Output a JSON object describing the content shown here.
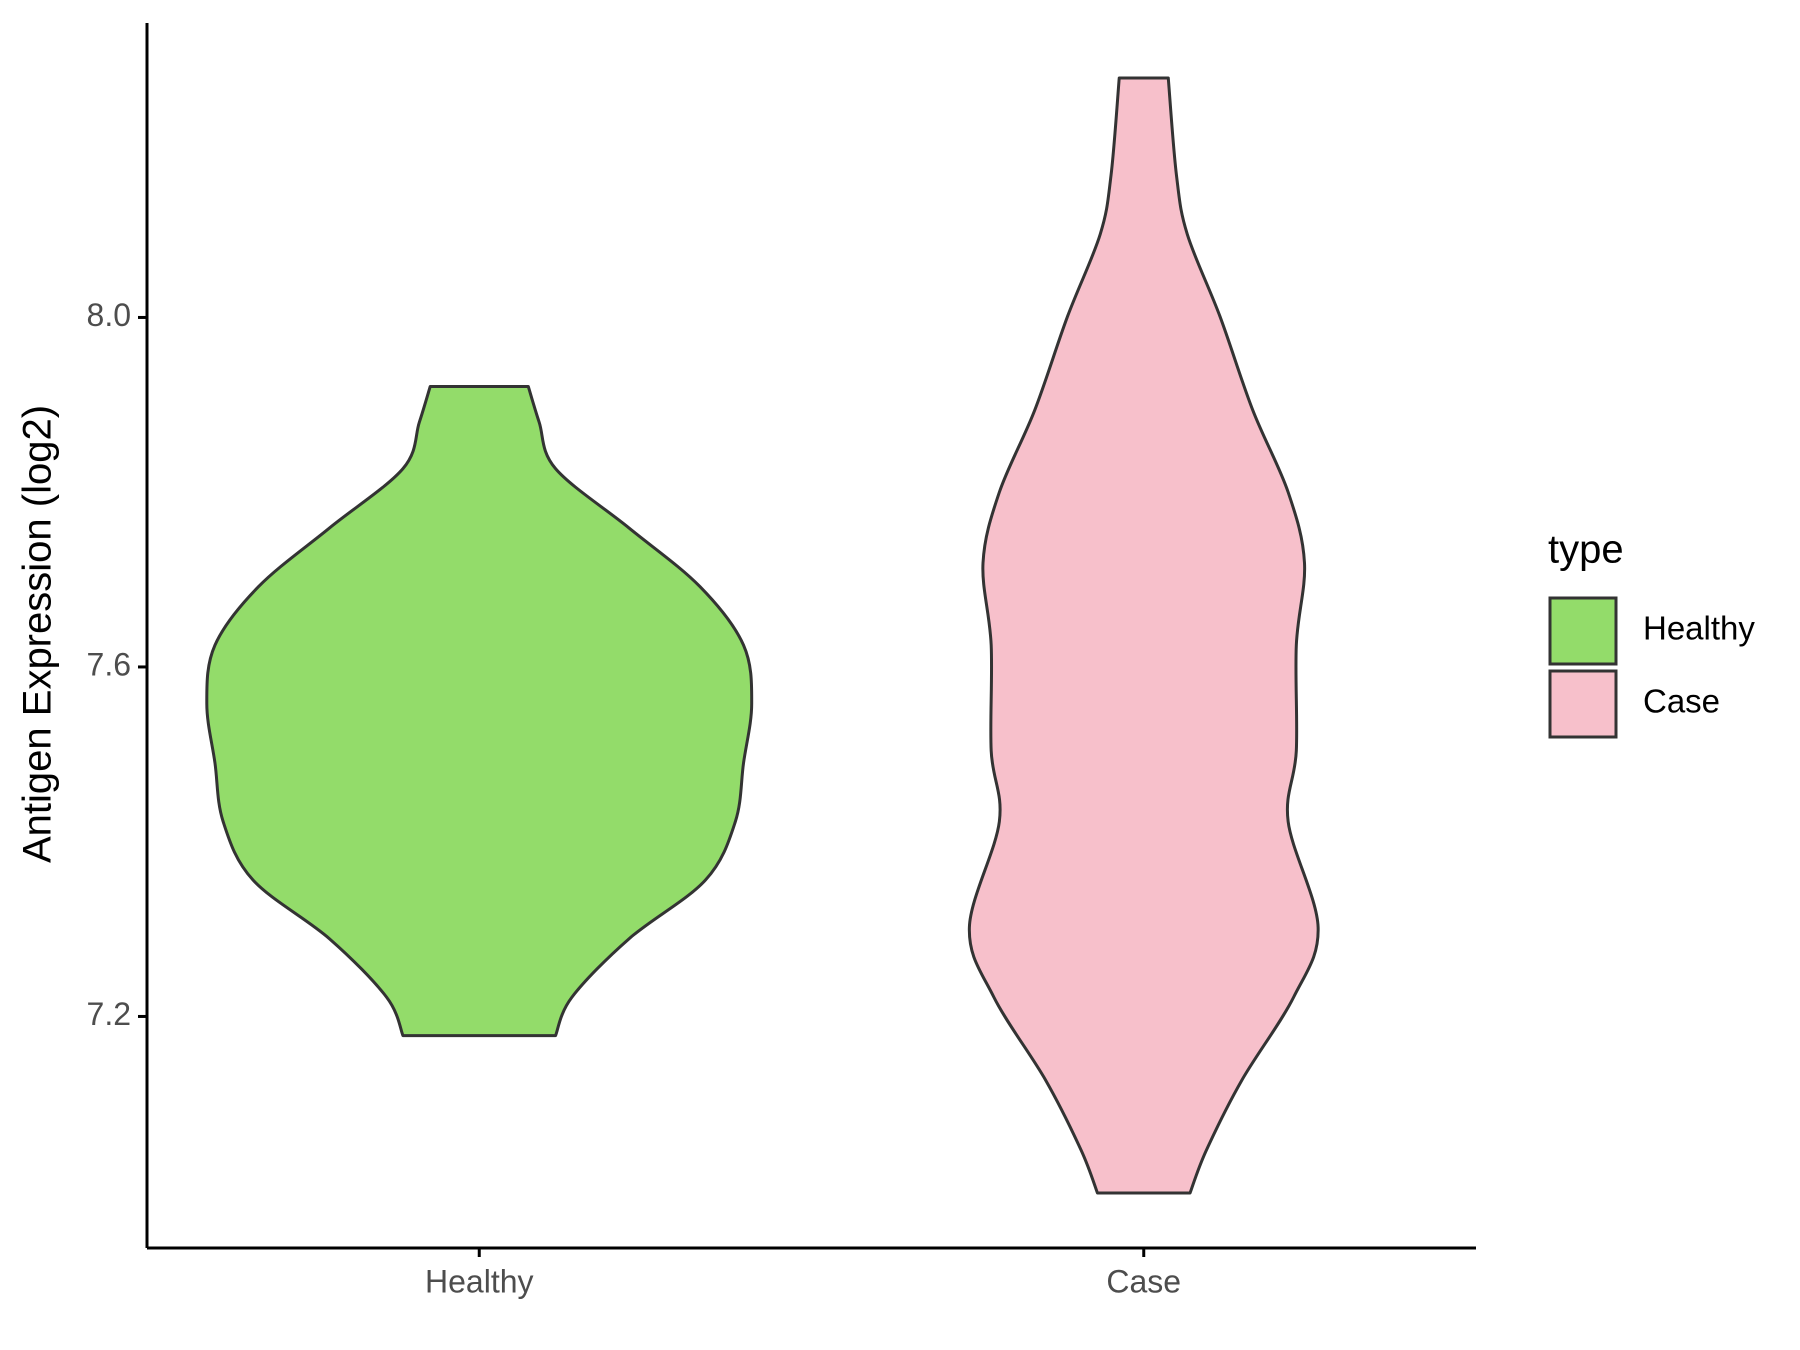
{
  "chart_data": {
    "type": "violin",
    "y_label": "Antigen Expression (log2)",
    "categories": [
      "Healthy",
      "Case"
    ],
    "legend_title": "type",
    "legend_position": "right",
    "grid": false,
    "ylim": [
      6.935,
      8.337
    ],
    "yticks": [
      {
        "value": 7.2,
        "label": "7.2"
      },
      {
        "value": 7.6,
        "label": "7.6"
      },
      {
        "value": 8.0,
        "label": "8.0"
      }
    ],
    "series": [
      {
        "name": "Healthy",
        "color": "#93dc6a",
        "y": [
          7.921,
          7.88,
          7.827,
          7.759,
          7.692,
          7.625,
          7.558,
          7.49,
          7.423,
          7.356,
          7.289,
          7.222,
          7.178
        ],
        "density": [
          0.18,
          0.22,
          0.28,
          0.55,
          0.81,
          0.97,
          1,
          0.97,
          0.94,
          0.83,
          0.55,
          0.34,
          0.28
        ]
      },
      {
        "name": "Case",
        "color": "#f7c0cb",
        "y": [
          8.274,
          8.163,
          8.095,
          8.001,
          7.894,
          7.8,
          7.719,
          7.625,
          7.504,
          7.423,
          7.302,
          7.222,
          7.127,
          7.047,
          6.998
        ],
        "density": [
          0.09,
          0.12,
          0.16,
          0.28,
          0.4,
          0.53,
          0.59,
          0.56,
          0.56,
          0.53,
          0.64,
          0.55,
          0.36,
          0.23,
          0.17
        ]
      }
    ]
  }
}
